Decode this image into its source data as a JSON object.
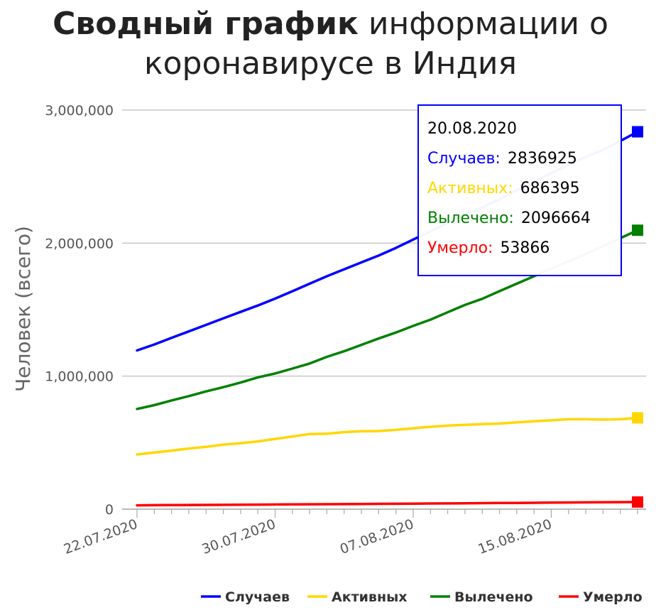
{
  "title": {
    "bold": "Сводный график",
    "rest": " информации о коронавирусе в Индия"
  },
  "chart_data": {
    "type": "line",
    "title": "Сводный график информации о коронавирусе в Индия",
    "ylabel": "Человек (всего)",
    "xlabel": "",
    "ylim": [
      0,
      3000000
    ],
    "y_ticks": [
      0,
      1000000,
      2000000,
      3000000
    ],
    "y_tick_labels": [
      "0",
      "1,000,000",
      "2,000,000",
      "3,000,000"
    ],
    "x_ticks": [
      "22.07.2020",
      "30.07.2020",
      "07.08.2020",
      "15.08.2020"
    ],
    "x": [
      "22.07.2020",
      "23.07.2020",
      "24.07.2020",
      "25.07.2020",
      "26.07.2020",
      "27.07.2020",
      "28.07.2020",
      "29.07.2020",
      "30.07.2020",
      "31.07.2020",
      "01.08.2020",
      "02.08.2020",
      "03.08.2020",
      "04.08.2020",
      "05.08.2020",
      "06.08.2020",
      "07.08.2020",
      "08.08.2020",
      "09.08.2020",
      "10.08.2020",
      "11.08.2020",
      "12.08.2020",
      "13.08.2020",
      "14.08.2020",
      "15.08.2020",
      "16.08.2020",
      "17.08.2020",
      "18.08.2020",
      "19.08.2020",
      "20.08.2020"
    ],
    "series": [
      {
        "name": "Случаев",
        "color": "#0000ff",
        "values": [
          1193000,
          1238000,
          1288000,
          1336000,
          1385000,
          1435000,
          1483000,
          1531000,
          1583000,
          1638000,
          1695000,
          1751000,
          1803000,
          1855000,
          1906000,
          1964000,
          2027000,
          2088000,
          2153000,
          2215000,
          2268000,
          2329000,
          2396000,
          2461000,
          2526000,
          2589000,
          2647000,
          2702000,
          2767000,
          2836925
        ]
      },
      {
        "name": "Активных",
        "color": "#ffd700",
        "values": [
          411000,
          426000,
          440000,
          456000,
          468000,
          485000,
          496000,
          509000,
          528000,
          546000,
          565000,
          567000,
          579000,
          586000,
          587000,
          597000,
          608000,
          619000,
          628000,
          634000,
          639000,
          643000,
          653000,
          661000,
          668000,
          676000,
          676000,
          673000,
          676000,
          686395
        ]
      },
      {
        "name": "Вылечено",
        "color": "#008000",
        "values": [
          753000,
          782000,
          817000,
          850000,
          885000,
          917000,
          952000,
          991000,
          1020000,
          1057000,
          1095000,
          1145000,
          1187000,
          1235000,
          1283000,
          1328000,
          1378000,
          1425000,
          1480000,
          1535000,
          1581000,
          1639000,
          1695000,
          1751000,
          1808000,
          1863000,
          1918000,
          1977000,
          2037000,
          2096664
        ]
      },
      {
        "name": "Умерло",
        "color": "#ff0000",
        "values": [
          28700,
          29900,
          30600,
          31400,
          32100,
          32800,
          33400,
          34200,
          35000,
          35800,
          36600,
          37400,
          38100,
          38900,
          39800,
          40700,
          41600,
          42500,
          43400,
          44400,
          45300,
          46200,
          47100,
          48000,
          48900,
          50000,
          51000,
          51900,
          52900,
          53866
        ]
      }
    ],
    "legend_position": "bottom-right",
    "grid": true
  },
  "tooltip": {
    "date": "20.08.2020",
    "rows": [
      {
        "label": "Случаев:",
        "value": "2836925",
        "color": "#0000ff"
      },
      {
        "label": "Активных:",
        "value": "686395",
        "color": "#ffd700"
      },
      {
        "label": "Вылечено:",
        "value": "2096664",
        "color": "#008000"
      },
      {
        "label": "Умерло:",
        "value": "53866",
        "color": "#ff0000"
      }
    ]
  }
}
